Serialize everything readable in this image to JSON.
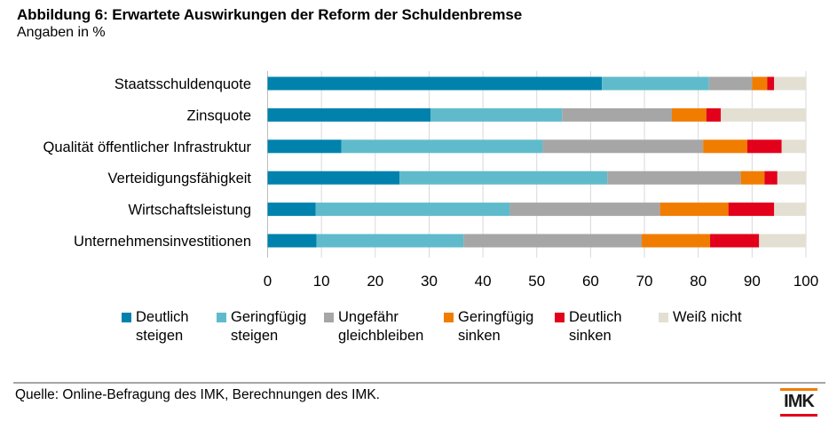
{
  "chart_data": {
    "type": "bar",
    "orientation": "horizontal",
    "stacked": true,
    "title": "Abbildung 6: Erwartete Auswirkungen der Reform der Schuldenbremse",
    "subtitle": "Angaben in %",
    "xlabel": "",
    "ylabel": "",
    "xlim": [
      0,
      100
    ],
    "xticks": [
      0,
      10,
      20,
      30,
      40,
      50,
      60,
      70,
      80,
      90,
      100
    ],
    "grid": true,
    "legend_position": "bottom",
    "categories": [
      "Staatsschuldenquote",
      "Zinsquote",
      "Qualität öffentlicher Infrastruktur",
      "Verteidigungsfähigkeit",
      "Wirtschaftsleistung",
      "Unternehmensinvestitionen"
    ],
    "series": [
      {
        "name": "Deutlich steigen",
        "label_lines": [
          "Deutlich",
          "steigen"
        ],
        "color": "#0082ad",
        "values": [
          62.1,
          30.3,
          13.7,
          24.5,
          8.9,
          9.1
        ]
      },
      {
        "name": "Geringfügig steigen",
        "label_lines": [
          "Geringfügig",
          "steigen"
        ],
        "color": "#5fbbcb",
        "values": [
          19.9,
          24.4,
          37.4,
          38.6,
          36.1,
          27.3
        ]
      },
      {
        "name": "Ungefähr gleichbleiben",
        "label_lines": [
          "Ungefähr",
          "gleichbleiben"
        ],
        "color": "#a6a6a6",
        "values": [
          8.0,
          20.4,
          29.8,
          24.8,
          27.9,
          33.1
        ]
      },
      {
        "name": "Geringfügig sinken",
        "label_lines": [
          "Geringfügig",
          "sinken"
        ],
        "color": "#f07d00",
        "values": [
          2.8,
          6.4,
          8.2,
          4.4,
          12.7,
          12.7
        ]
      },
      {
        "name": "Deutlich sinken",
        "label_lines": [
          "Deutlich",
          "sinken"
        ],
        "color": "#e2001a",
        "values": [
          1.3,
          2.7,
          6.4,
          2.4,
          8.5,
          9.1
        ]
      },
      {
        "name": "Weiß nicht",
        "label_lines": [
          "Weiß nicht"
        ],
        "color": "#e3e0d3",
        "values": [
          5.9,
          15.8,
          4.5,
          5.3,
          5.9,
          8.7
        ]
      }
    ]
  },
  "header": {
    "title": "Abbildung 6: Erwartete Auswirkungen der Reform der Schuldenbremse",
    "subtitle": "Angaben in %"
  },
  "footer": {
    "source": "Quelle: Online-Befragung des IMK, Berechnungen des IMK.",
    "logo_text": "IMK"
  }
}
